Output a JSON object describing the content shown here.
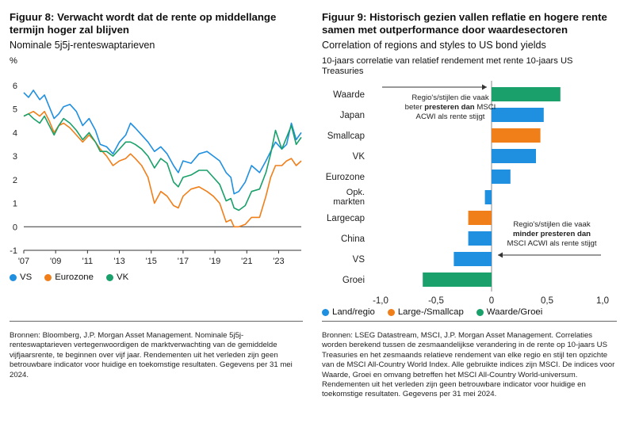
{
  "left": {
    "title": "Figuur 8: Verwacht wordt dat de rente op middellange termijn hoger zal blijven",
    "subtitle": "Nominale 5j5j-renteswaptarieven",
    "unit": "%",
    "legend": [
      {
        "name": "VS",
        "color": "#1f8fe0"
      },
      {
        "name": "Eurozone",
        "color": "#f07f1a"
      },
      {
        "name": "VK",
        "color": "#1aa06a"
      }
    ],
    "source": "Bronnen: Bloomberg, J.P. Morgan Asset Management. Nominale 5j5j-renteswaptarieven vertegenwoordigen de marktverwachting van de gemiddelde vijfjaarsrente, te beginnen over vijf jaar. Rendementen uit het verleden zijn geen betrouwbare indicator voor huidige en toekomstige resultaten. Gegevens per 31 mei 2024."
  },
  "right": {
    "title": "Figuur 9: Historisch gezien vallen reflatie en hogere rente samen met outperformance door waardesectoren",
    "subtitle": "Correlation of regions and styles to US bond yields",
    "caption": "10-jaars correlatie van relatief rendement met rente 10-jaars US Treasuries",
    "ann_top_1": "Regio's/stijlen die vaak",
    "ann_top_2a": "beter ",
    "ann_top_2b": "presteren dan",
    "ann_top_2c": " MSCI",
    "ann_top_3": "ACWI als rente stijgt",
    "ann_bot_1": "Regio's/stijlen die vaak",
    "ann_bot_2": "minder presteren dan",
    "ann_bot_3": "MSCI ACWI als rente stijgt",
    "legend": [
      {
        "name": "Land/regio",
        "color": "#1f8fe0"
      },
      {
        "name": "Large-/Smallcap",
        "color": "#f07f1a"
      },
      {
        "name": "Waarde/Groei",
        "color": "#1aa06a"
      }
    ],
    "source": "Bronnen: LSEG Datastream, MSCI, J.P. Morgan Asset Management. Correlaties worden berekend tussen de zesmaandelijkse verandering in de rente op 10-jaars US Treasuries en het zesmaands relatieve rendement van elke regio en stijl ten opzichte van de MSCI All-Country World Index. Alle gebruikte indices zijn MSCI. De indices voor Waarde, Groei en omvang betreffen het MSCI All-Country World-universum. Rendementen uit het verleden zijn geen betrouwbare indicator voor huidige en toekomstige resultaten. Gegevens per 31 mei 2024."
  },
  "chart_data": [
    {
      "type": "line",
      "title": "Nominale 5j5j-renteswaptarieven",
      "ylabel": "%",
      "ylim": [
        -1,
        6
      ],
      "yticks": [
        -1,
        0,
        1,
        2,
        3,
        4,
        5,
        6
      ],
      "xlim": [
        2007,
        2024.42
      ],
      "xticks": [
        2007,
        2009,
        2011,
        2013,
        2015,
        2017,
        2019,
        2021,
        2023
      ],
      "xticklabels": [
        "'07",
        "'09",
        "'11",
        "'13",
        "'15",
        "'17",
        "'19",
        "'21",
        "'23"
      ],
      "grid": false,
      "series": [
        {
          "name": "VS",
          "color": "#1f8fe0",
          "x": [
            2007,
            2007.3,
            2007.6,
            2008.0,
            2008.3,
            2008.6,
            2008.9,
            2009.2,
            2009.5,
            2009.9,
            2010.3,
            2010.7,
            2011.1,
            2011.5,
            2011.8,
            2012.2,
            2012.6,
            2013.0,
            2013.4,
            2013.7,
            2014.0,
            2014.4,
            2014.8,
            2015.2,
            2015.6,
            2016.0,
            2016.4,
            2016.7,
            2017.0,
            2017.5,
            2018.0,
            2018.5,
            2018.9,
            2019.3,
            2019.7,
            2020.0,
            2020.2,
            2020.5,
            2020.9,
            2021.3,
            2021.8,
            2022.2,
            2022.5,
            2022.8,
            2023.2,
            2023.5,
            2023.8,
            2024.1,
            2024.42
          ],
          "y": [
            5.7,
            5.5,
            5.8,
            5.4,
            5.6,
            5.1,
            4.6,
            4.8,
            5.1,
            5.2,
            4.9,
            4.3,
            4.6,
            4.1,
            3.5,
            3.4,
            3.1,
            3.6,
            3.9,
            4.4,
            4.2,
            3.9,
            3.6,
            3.2,
            3.4,
            3.1,
            2.6,
            2.3,
            2.8,
            2.7,
            3.1,
            3.2,
            3.0,
            2.8,
            2.3,
            2.1,
            1.4,
            1.5,
            1.9,
            2.6,
            2.3,
            2.8,
            3.2,
            3.6,
            3.3,
            3.5,
            4.4,
            3.7,
            4.0
          ]
        },
        {
          "name": "Eurozone",
          "color": "#f07f1a",
          "x": [
            2007,
            2007.3,
            2007.6,
            2008.0,
            2008.3,
            2008.6,
            2008.9,
            2009.2,
            2009.5,
            2009.9,
            2010.3,
            2010.7,
            2011.1,
            2011.5,
            2011.8,
            2012.2,
            2012.6,
            2013.0,
            2013.4,
            2013.7,
            2014.0,
            2014.4,
            2014.8,
            2015.2,
            2015.6,
            2016.0,
            2016.4,
            2016.7,
            2017.0,
            2017.5,
            2018.0,
            2018.5,
            2018.9,
            2019.3,
            2019.7,
            2020.0,
            2020.2,
            2020.5,
            2020.9,
            2021.3,
            2021.8,
            2022.2,
            2022.5,
            2022.8,
            2023.2,
            2023.5,
            2023.8,
            2024.1,
            2024.42
          ],
          "y": [
            4.7,
            4.8,
            4.9,
            4.7,
            4.9,
            4.5,
            4.0,
            4.3,
            4.4,
            4.2,
            3.9,
            3.6,
            3.9,
            3.6,
            3.3,
            3.0,
            2.6,
            2.8,
            2.9,
            3.1,
            2.9,
            2.6,
            2.1,
            1.0,
            1.5,
            1.3,
            0.9,
            0.8,
            1.3,
            1.6,
            1.7,
            1.5,
            1.3,
            1.0,
            0.2,
            0.3,
            0.0,
            0.0,
            0.1,
            0.4,
            0.4,
            1.3,
            2.1,
            2.6,
            2.6,
            2.8,
            2.9,
            2.6,
            2.8
          ]
        },
        {
          "name": "VK",
          "color": "#1aa06a",
          "x": [
            2007,
            2007.3,
            2007.6,
            2008.0,
            2008.3,
            2008.6,
            2008.9,
            2009.2,
            2009.5,
            2009.9,
            2010.3,
            2010.7,
            2011.1,
            2011.5,
            2011.8,
            2012.2,
            2012.6,
            2013.0,
            2013.4,
            2013.7,
            2014.0,
            2014.4,
            2014.8,
            2015.2,
            2015.6,
            2016.0,
            2016.4,
            2016.7,
            2017.0,
            2017.5,
            2018.0,
            2018.5,
            2018.9,
            2019.3,
            2019.7,
            2020.0,
            2020.2,
            2020.5,
            2020.9,
            2021.3,
            2021.8,
            2022.2,
            2022.5,
            2022.8,
            2023.2,
            2023.5,
            2023.8,
            2024.1,
            2024.42
          ],
          "y": [
            4.7,
            4.8,
            4.6,
            4.4,
            4.7,
            4.3,
            3.9,
            4.3,
            4.6,
            4.4,
            4.1,
            3.7,
            4.0,
            3.6,
            3.2,
            3.2,
            3.0,
            3.3,
            3.6,
            3.6,
            3.5,
            3.3,
            3.0,
            2.5,
            2.9,
            2.7,
            1.9,
            1.7,
            2.1,
            2.2,
            2.4,
            2.4,
            2.1,
            1.8,
            1.1,
            1.2,
            0.8,
            0.7,
            0.9,
            1.5,
            1.6,
            2.3,
            3.1,
            4.1,
            3.3,
            3.8,
            4.3,
            3.5,
            3.8
          ]
        }
      ]
    },
    {
      "type": "bar",
      "orientation": "horizontal",
      "title": "Correlation of regions and styles to US bond yields",
      "xlim": [
        -1.0,
        1.0
      ],
      "xticks": [
        -1.0,
        -0.5,
        0,
        0.5,
        1.0
      ],
      "xticklabels": [
        "-1,0",
        "-0,5",
        "0",
        "0,5",
        "1,0"
      ],
      "categories": [
        "Waarde",
        "Japan",
        "Smallcap",
        "VK",
        "Eurozone",
        "Opk. markten",
        "Largecap",
        "China",
        "VS",
        "Groei"
      ],
      "values": [
        0.62,
        0.47,
        0.44,
        0.4,
        0.17,
        -0.06,
        -0.21,
        -0.21,
        -0.34,
        -0.62
      ],
      "groups": [
        "Waarde/Groei",
        "Land/regio",
        "Large-/Smallcap",
        "Land/regio",
        "Land/regio",
        "Land/regio",
        "Large-/Smallcap",
        "Land/regio",
        "Land/regio",
        "Waarde/Groei"
      ]
    }
  ]
}
